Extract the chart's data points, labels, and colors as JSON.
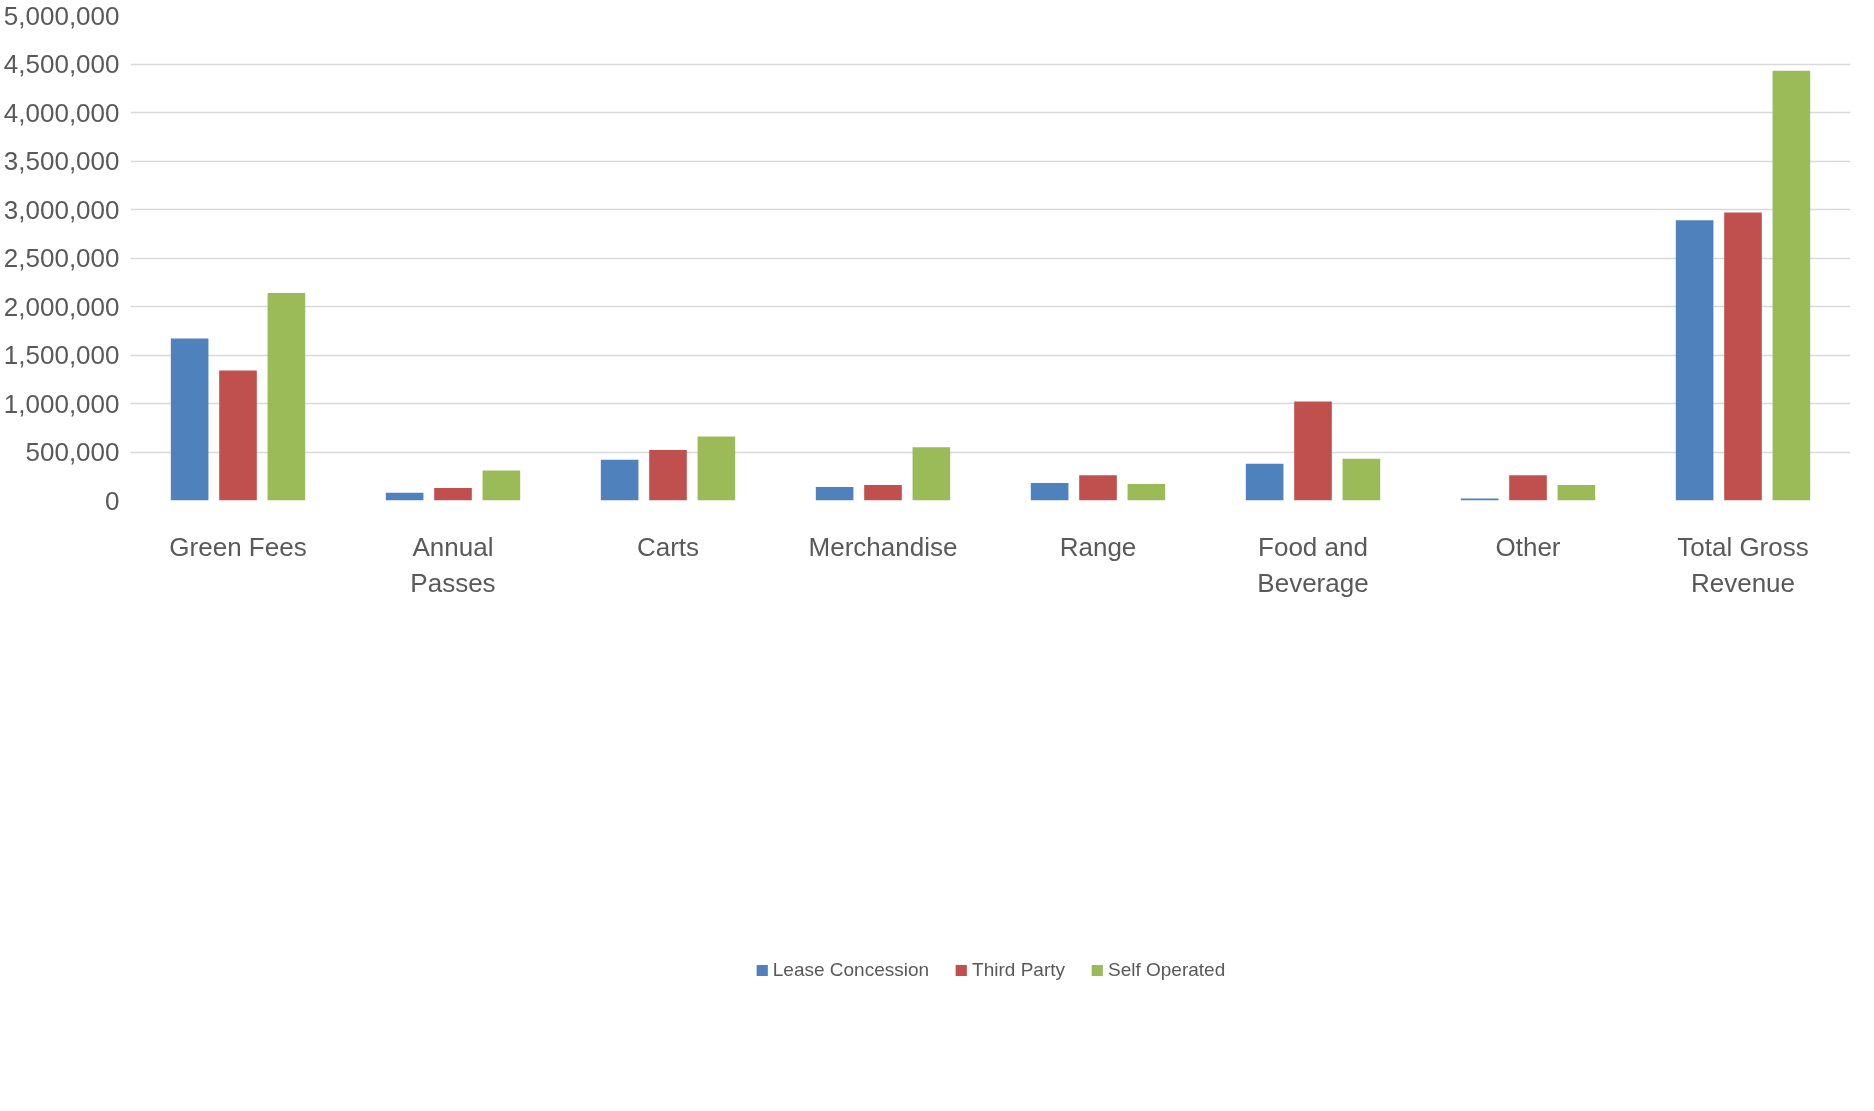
{
  "chart_data": {
    "type": "bar",
    "categories": [
      "Green Fees",
      "Annual Passes",
      "Carts",
      "Merchandise",
      "Range",
      "Food and Beverage",
      "Other",
      "Total Gross Revenue"
    ],
    "series": [
      {
        "name": "Lease Concession",
        "color": "#4f81bd",
        "values": [
          1670000,
          80000,
          420000,
          140000,
          180000,
          380000,
          20000,
          2890000
        ]
      },
      {
        "name": "Third Party",
        "color": "#c0504d",
        "values": [
          1340000,
          130000,
          520000,
          160000,
          260000,
          1020000,
          260000,
          2970000
        ]
      },
      {
        "name": "Self Operated",
        "color": "#9bbb59",
        "values": [
          2140000,
          310000,
          660000,
          550000,
          170000,
          430000,
          160000,
          4430000
        ]
      }
    ],
    "ylim": [
      0,
      5000000
    ],
    "yticks": [
      {
        "value": 0,
        "label": "0"
      },
      {
        "value": 500000,
        "label": "500,000"
      },
      {
        "value": 1000000,
        "label": "1,000,000"
      },
      {
        "value": 1500000,
        "label": "1,500,000"
      },
      {
        "value": 2000000,
        "label": "2,000,000"
      },
      {
        "value": 2500000,
        "label": "2,500,000"
      },
      {
        "value": 3000000,
        "label": "3,000,000"
      },
      {
        "value": 3500000,
        "label": "3,500,000"
      },
      {
        "value": 4000000,
        "label": "4,000,000"
      },
      {
        "value": 4500000,
        "label": "4,500,000"
      },
      {
        "value": 5000000,
        "label": "5,000,000"
      }
    ],
    "grid": "y",
    "legend": "bottom"
  }
}
